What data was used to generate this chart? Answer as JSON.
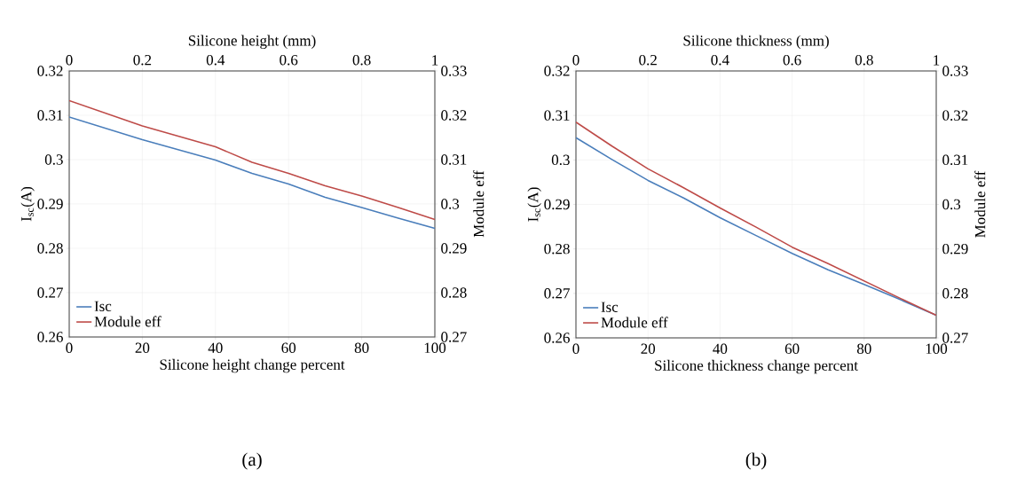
{
  "chart_data": [
    {
      "type": "line",
      "xlabel": "Silicone height change percent",
      "x2label": "Silicone height (mm)",
      "ylabel": "I$_{sc}$(A)",
      "y2label": "Module eff",
      "xlim": [
        0,
        100
      ],
      "xticks": [
        0,
        20,
        40,
        60,
        80,
        100
      ],
      "x2lim": [
        0,
        1
      ],
      "x2ticks": [
        0,
        0.2,
        0.4,
        0.6,
        0.8,
        1
      ],
      "ylim": [
        0.26,
        0.32
      ],
      "yticks": [
        0.26,
        0.27,
        0.28,
        0.29,
        0.3,
        0.31,
        0.32
      ],
      "y2lim": [
        0.27,
        0.33
      ],
      "y2ticks": [
        0.27,
        0.28,
        0.29,
        0.3,
        0.31,
        0.32,
        0.33
      ],
      "grid": true,
      "legend": "bottom left",
      "marker": "none",
      "line_style": "solid",
      "annotations": [
        "(a)"
      ],
      "x": [
        0,
        20,
        40,
        50,
        60,
        70,
        80,
        90,
        100
      ],
      "series": [
        {
          "name": "Isc",
          "color": "#4a7ebb",
          "values": [
            0.3096,
            0.3045,
            0.2999,
            0.2969,
            0.2945,
            0.2915,
            0.2892,
            0.2868,
            0.2845
          ]
        },
        {
          "name": "Module eff",
          "color": "#be4b48",
          "axis": "y2",
          "values": [
            0.3233,
            0.3176,
            0.3129,
            0.3094,
            0.3069,
            0.3041,
            0.3018,
            0.2992,
            0.2965
          ]
        }
      ]
    },
    {
      "type": "line",
      "xlabel": "Silicone thickness change percent",
      "x2label": "Silicone thickness (mm)",
      "ylabel": "I$_{sc}$(A)",
      "y2label": "Module eff",
      "xlim": [
        0,
        100
      ],
      "xticks": [
        0,
        20,
        40,
        60,
        80,
        100
      ],
      "x2lim": [
        0,
        1
      ],
      "x2ticks": [
        0,
        0.2,
        0.4,
        0.6,
        0.8,
        1
      ],
      "ylim": [
        0.26,
        0.32
      ],
      "yticks": [
        0.26,
        0.27,
        0.28,
        0.29,
        0.3,
        0.31,
        0.32
      ],
      "y2lim": [
        0.27,
        0.33
      ],
      "y2ticks": [
        0.27,
        0.28,
        0.29,
        0.3,
        0.31,
        0.32,
        0.33
      ],
      "grid": true,
      "legend": "bottom left",
      "marker": "none",
      "line_style": "solid",
      "annotations": [
        "(b)"
      ],
      "x": [
        0,
        10,
        20,
        30,
        40,
        50,
        60,
        70,
        80,
        90,
        100
      ],
      "series": [
        {
          "name": "Isc",
          "color": "#4a7ebb",
          "values": [
            0.305,
            0.3001,
            0.2954,
            0.2914,
            0.287,
            0.283,
            0.279,
            0.2753,
            0.272,
            0.2686,
            0.2651
          ]
        },
        {
          "name": "Module eff",
          "color": "#be4b48",
          "axis": "y2",
          "values": [
            0.3185,
            0.3131,
            0.308,
            0.3037,
            0.2992,
            0.2949,
            0.2904,
            0.2867,
            0.2828,
            0.2789,
            0.2751
          ]
        }
      ]
    }
  ]
}
